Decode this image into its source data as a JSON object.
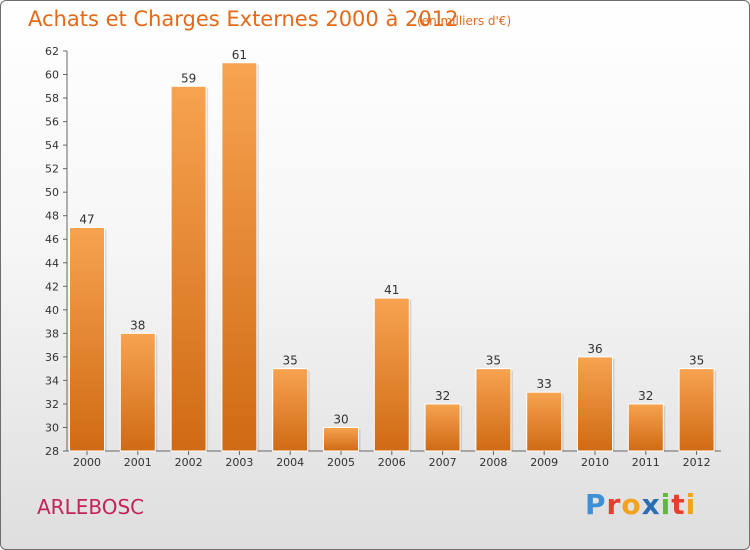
{
  "header": {
    "title": "Achats et Charges Externes 2000 à 2012",
    "subtitle": "(en milliers d'€)"
  },
  "footer": {
    "location": "ARLEBOSC",
    "logo": [
      "P",
      "r",
      "o",
      "x",
      "i",
      "t",
      "i"
    ]
  },
  "colors": {
    "bar_top": "#f7a350",
    "bar_bottom": "#d06a14",
    "title": "#e46a1a",
    "location": "#c4225b"
  },
  "chart_data": {
    "type": "bar",
    "title": "Achats et Charges Externes 2000 à 2012",
    "subtitle": "(en milliers d'€)",
    "categories": [
      "2000",
      "2001",
      "2002",
      "2003",
      "2004",
      "2005",
      "2006",
      "2007",
      "2008",
      "2009",
      "2010",
      "2011",
      "2012"
    ],
    "values": [
      47,
      38,
      59,
      61,
      35,
      30,
      41,
      32,
      35,
      33,
      36,
      32,
      35
    ],
    "ylim": [
      28,
      62
    ],
    "yticks": [
      28,
      30,
      32,
      34,
      36,
      38,
      40,
      42,
      44,
      46,
      48,
      50,
      52,
      54,
      56,
      58,
      60,
      62
    ],
    "grid": false,
    "data_labels": true
  }
}
